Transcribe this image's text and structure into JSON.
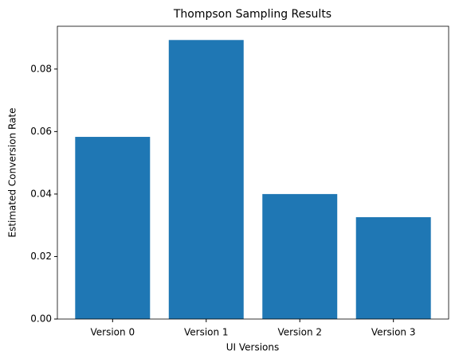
{
  "chart_data": {
    "type": "bar",
    "title": "Thompson Sampling Results",
    "x_label": "UI Versions",
    "y_label": "Estimated Conversion Rate",
    "categories": [
      "Version 0",
      "Version 1",
      "Version 2",
      "Version 3"
    ],
    "values": [
      0.0583,
      0.0893,
      0.04,
      0.0326
    ],
    "color": "#1f77b4",
    "ylim": [
      0,
      0.0937
    ],
    "yticks": [
      {
        "value": 0,
        "label": "0.00"
      },
      {
        "value": 0.02,
        "label": "0.02"
      },
      {
        "value": 0.04,
        "label": "0.04"
      },
      {
        "value": 0.06,
        "label": "0.06"
      },
      {
        "value": 0.08,
        "label": "0.08"
      }
    ],
    "grid": false
  }
}
